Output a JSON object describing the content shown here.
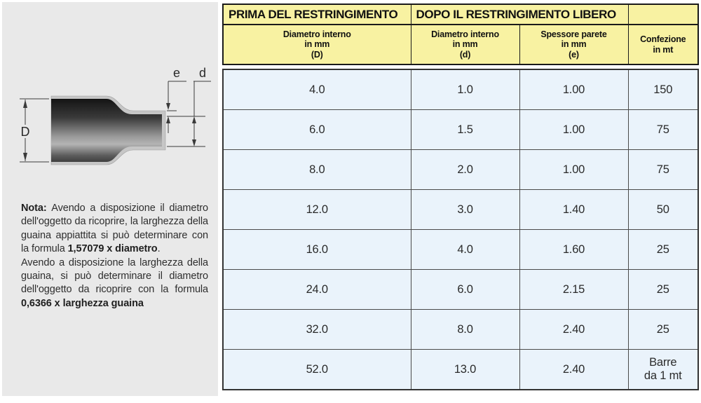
{
  "diagram": {
    "labels": {
      "big_diameter": "D",
      "wall_thickness": "e",
      "small_diameter": "d"
    },
    "colors": {
      "casing": "#c6c6c6",
      "tube_dark": "#1a1a1a",
      "tube_light": "#b0b0b0",
      "dimension_line": "#3a3a3a"
    }
  },
  "note": {
    "paragraphs": [
      [
        {
          "text": "Nota: ",
          "bold": true
        },
        {
          "text": "Avendo a disposizione il diametro dell'oggetto da ricoprire, la larghezza della guaina appiattita si può determinare con la formula ",
          "bold": false
        },
        {
          "text": "1,57079 x diametro",
          "bold": true
        },
        {
          "text": ".",
          "bold": false
        }
      ],
      [
        {
          "text": "Avendo a disposizione la larghezza della guaina, si può determinare il diametro dell'oggetto da ricoprire con la formula ",
          "bold": false
        },
        {
          "text": "0,6366 x larghezza guaina",
          "bold": true
        }
      ]
    ]
  },
  "table": {
    "group_headers": [
      {
        "label": "PRIMA DEL RESTRINGIMENTO",
        "span": 1
      },
      {
        "label": "DOPO IL RESTRINGIMENTO LIBERO",
        "span": 2
      },
      {
        "label": "",
        "span": 1
      }
    ],
    "columns": [
      {
        "title": "Diametro interno",
        "unit": "in mm",
        "symbol": "(D)"
      },
      {
        "title": "Diametro interno",
        "unit": "in mm",
        "symbol": "(d)"
      },
      {
        "title": "Spessore parete",
        "unit": "in mm",
        "symbol": "(e)"
      },
      {
        "title": "Confezione",
        "unit": "in mt",
        "symbol": ""
      }
    ],
    "rows": [
      [
        "4.0",
        "1.0",
        "1.00",
        "150"
      ],
      [
        "6.0",
        "1.5",
        "1.00",
        "75"
      ],
      [
        "8.0",
        "2.0",
        "1.00",
        "75"
      ],
      [
        "12.0",
        "3.0",
        "1.40",
        "50"
      ],
      [
        "16.0",
        "4.0",
        "1.60",
        "25"
      ],
      [
        "24.0",
        "6.0",
        "2.15",
        "25"
      ],
      [
        "32.0",
        "8.0",
        "2.40",
        "25"
      ],
      [
        "52.0",
        "13.0",
        "2.40",
        "Barre\nda 1 mt"
      ]
    ],
    "colors": {
      "header_bg": "#f8f2a2",
      "row_bg": "#eaf3fb",
      "panel_bg": "#e9e9e9"
    }
  }
}
